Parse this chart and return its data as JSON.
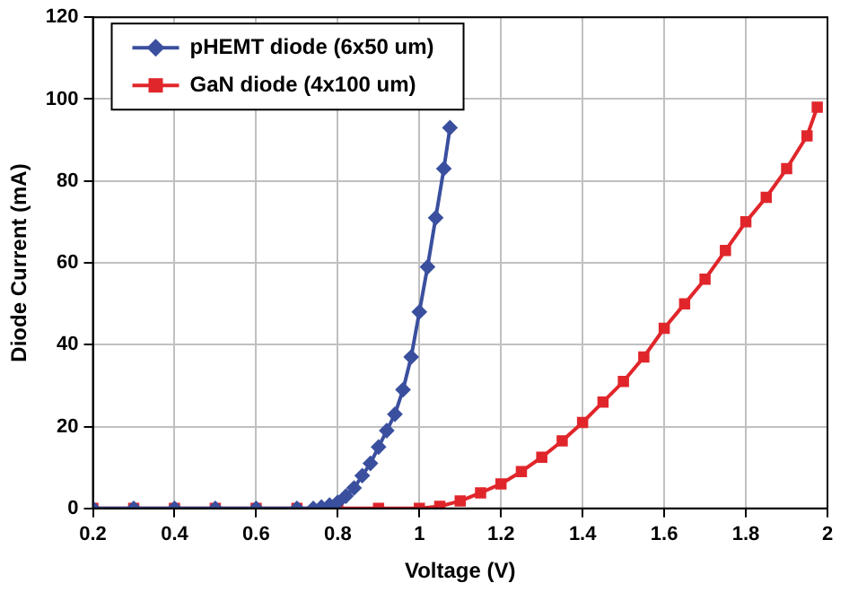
{
  "chart_data": {
    "type": "line",
    "xlabel": "Voltage (V)",
    "ylabel": "Diode Current (mA)",
    "xlim": [
      0.2,
      2
    ],
    "xticks": [
      0.2,
      0.4,
      0.6,
      0.8,
      1,
      1.2,
      1.4,
      1.6,
      1.8,
      2
    ],
    "ylim": [
      0,
      120
    ],
    "yticks": [
      0,
      20,
      40,
      60,
      80,
      100,
      120
    ],
    "grid": true,
    "legend": "top left",
    "series": [
      {
        "name": "pHEMT diode (6x50 um)",
        "color": "#3a4f9e",
        "marker": "diamond",
        "x": [
          0.2,
          0.3,
          0.4,
          0.5,
          0.6,
          0.7,
          0.74,
          0.76,
          0.78,
          0.8,
          0.82,
          0.84,
          0.86,
          0.88,
          0.9,
          0.92,
          0.94,
          0.96,
          0.98,
          1,
          1.02,
          1.04,
          1.06,
          1.075
        ],
        "values": [
          0,
          0,
          0,
          0,
          0,
          0,
          0,
          0.3,
          0.8,
          1.5,
          3,
          5,
          8,
          11,
          15,
          19,
          23,
          29,
          37,
          48,
          59,
          71,
          83,
          93
        ]
      },
      {
        "name": "GaN diode (4x100 um)",
        "color": "#e0262b",
        "marker": "square",
        "x": [
          0.2,
          0.3,
          0.4,
          0.5,
          0.6,
          0.7,
          0.8,
          0.9,
          1,
          1.05,
          1.1,
          1.15,
          1.2,
          1.25,
          1.3,
          1.35,
          1.4,
          1.45,
          1.5,
          1.55,
          1.6,
          1.65,
          1.7,
          1.75,
          1.8,
          1.85,
          1.9,
          1.95,
          1.975
        ],
        "values": [
          0,
          0,
          0,
          0,
          0,
          0,
          0,
          0,
          0,
          0.5,
          1.8,
          3.8,
          6,
          9,
          12.5,
          16.5,
          21,
          26,
          31,
          37,
          44,
          50,
          56,
          63,
          70,
          76,
          83,
          91,
          98
        ]
      }
    ]
  }
}
